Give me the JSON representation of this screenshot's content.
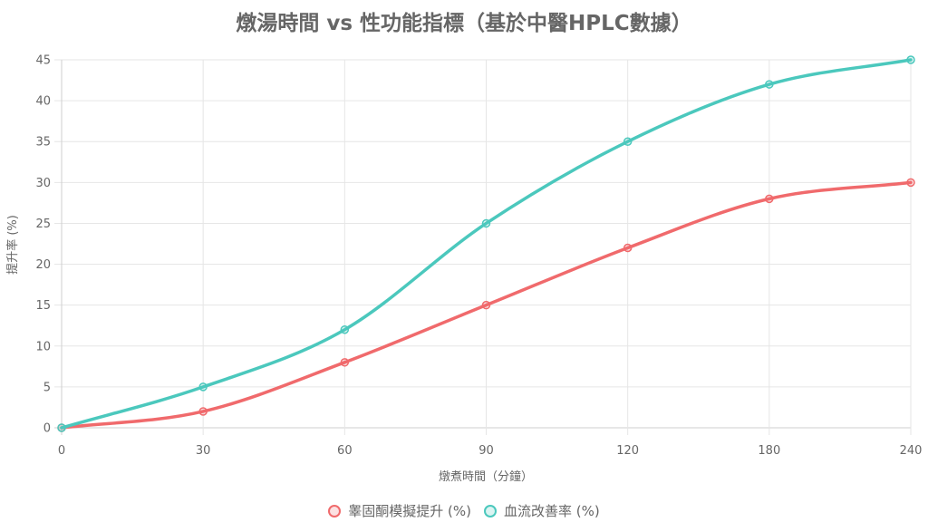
{
  "chart_data": {
    "type": "line",
    "title": "燉湯時間 vs 性功能指標（基於中醫HPLC數據）",
    "xlabel": "燉煮時間（分鐘）",
    "ylabel": "提升率 (%)",
    "categories": [
      "0",
      "30",
      "60",
      "90",
      "120",
      "180",
      "240"
    ],
    "ylim": [
      0,
      45
    ],
    "yticks": [
      0,
      5,
      10,
      15,
      20,
      25,
      30,
      35,
      40,
      45
    ],
    "grid": true,
    "legend_position": "bottom",
    "series": [
      {
        "name": "睾固酮模擬提升 (%)",
        "values": [
          0,
          2,
          8,
          15,
          22,
          28,
          30
        ],
        "color": "#f06a6c",
        "fill": "rgba(240,106,108,0.2)"
      },
      {
        "name": "血流改善率 (%)",
        "values": [
          0,
          5,
          12,
          25,
          35,
          42,
          45
        ],
        "color": "#4bc8bd",
        "fill": "rgba(75,200,189,0.2)"
      }
    ]
  }
}
